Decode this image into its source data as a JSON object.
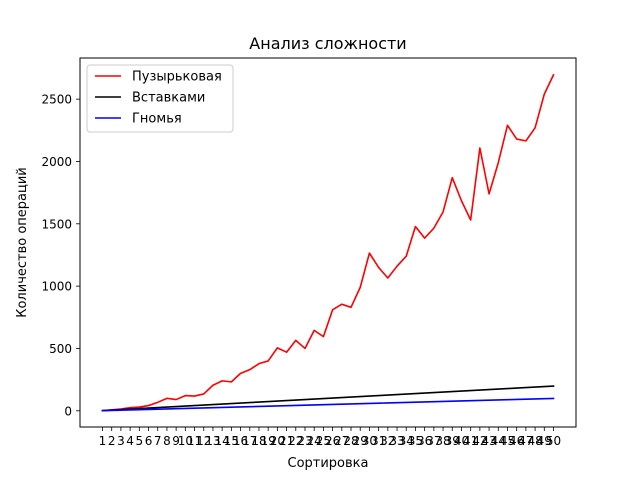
{
  "chart_data": {
    "type": "line",
    "title": "Анализ сложности",
    "xlabel": "Сортировка",
    "ylabel": "Количество операций",
    "categories": [
      "1",
      "2",
      "3",
      "4",
      "5",
      "6",
      "7",
      "8",
      "9",
      "10",
      "11",
      "12",
      "13",
      "14",
      "15",
      "16",
      "17",
      "18",
      "19",
      "20",
      "21",
      "22",
      "23",
      "24",
      "25",
      "26",
      "27",
      "28",
      "29",
      "30",
      "31",
      "32",
      "33",
      "34",
      "35",
      "36",
      "37",
      "38",
      "39",
      "40",
      "41",
      "42",
      "43",
      "44",
      "45",
      "46",
      "47",
      "48",
      "49",
      "50"
    ],
    "ylim": [
      -130,
      2830
    ],
    "yticks": [
      0,
      500,
      1000,
      1500,
      2000,
      2500
    ],
    "legend_position": "top-left",
    "grid": false,
    "series": [
      {
        "name": "Пузырьковая",
        "color": "#ff0000",
        "values": [
          0,
          8,
          14,
          25,
          30,
          42,
          68,
          100,
          90,
          122,
          118,
          135,
          205,
          240,
          232,
          300,
          330,
          378,
          400,
          505,
          470,
          565,
          500,
          645,
          595,
          810,
          855,
          830,
          990,
          1265,
          1150,
          1065,
          1160,
          1240,
          1478,
          1385,
          1465,
          1595,
          1870,
          1685,
          1530,
          2108,
          1740,
          1990,
          2290,
          2180,
          2165,
          2270,
          2540,
          2695
        ]
      },
      {
        "name": "Вставками",
        "color": "#000000",
        "values": [
          2,
          6,
          10,
          14,
          18,
          22,
          26,
          30,
          34,
          38,
          42,
          46,
          50,
          54,
          58,
          62,
          66,
          70,
          74,
          78,
          82,
          86,
          90,
          94,
          98,
          102,
          106,
          110,
          114,
          118,
          122,
          126,
          130,
          134,
          138,
          142,
          146,
          150,
          154,
          158,
          162,
          166,
          170,
          174,
          178,
          182,
          186,
          190,
          194,
          198
        ]
      },
      {
        "name": "Гномья",
        "color": "#0000ff",
        "values": [
          1,
          3,
          5,
          7,
          9,
          11,
          13,
          15,
          17,
          19,
          21,
          23,
          25,
          27,
          29,
          31,
          33,
          35,
          37,
          39,
          41,
          43,
          45,
          47,
          49,
          51,
          53,
          55,
          57,
          59,
          61,
          63,
          65,
          67,
          69,
          71,
          73,
          75,
          77,
          79,
          81,
          83,
          85,
          87,
          89,
          91,
          93,
          95,
          97,
          99
        ]
      }
    ]
  }
}
